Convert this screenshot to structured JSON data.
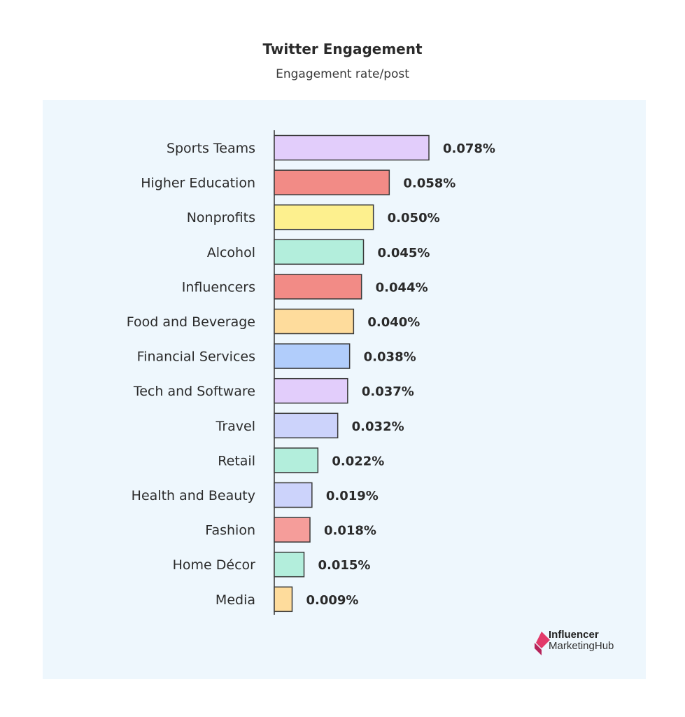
{
  "chart_data": {
    "type": "bar",
    "orientation": "horizontal",
    "title": "Twitter Engagement",
    "subtitle": "Engagement rate/post",
    "categories": [
      "Sports Teams",
      "Higher Education",
      "Nonprofits",
      "Alcohol",
      "Influencers",
      "Food and Beverage",
      "Financial Services",
      "Tech and Software",
      "Travel",
      "Retail",
      "Health and Beauty",
      "Fashion",
      "Home Décor",
      "Media"
    ],
    "values": [
      0.078,
      0.058,
      0.05,
      0.045,
      0.044,
      0.04,
      0.038,
      0.037,
      0.032,
      0.022,
      0.019,
      0.018,
      0.015,
      0.009
    ],
    "value_labels": [
      "0.078%",
      "0.058%",
      "0.050%",
      "0.045%",
      "0.044%",
      "0.040%",
      "0.038%",
      "0.037%",
      "0.032%",
      "0.022%",
      "0.019%",
      "0.018%",
      "0.015%",
      "0.009%"
    ],
    "colors": [
      "#e2cdfb",
      "#f28b86",
      "#fdf08e",
      "#b3eedc",
      "#f28b86",
      "#fedc9c",
      "#b1cdfb",
      "#e2cdfb",
      "#ccd3fb",
      "#b3eedc",
      "#ccd3fb",
      "#f59d9a",
      "#b3eedc",
      "#fedc9c"
    ],
    "unit": "%",
    "grid": false,
    "legend": "none"
  },
  "branding": {
    "line1": "Influencer",
    "line2a": "Marketing",
    "line2b": "Hub",
    "colors": [
      "#e23a6a",
      "#b6245a"
    ]
  }
}
